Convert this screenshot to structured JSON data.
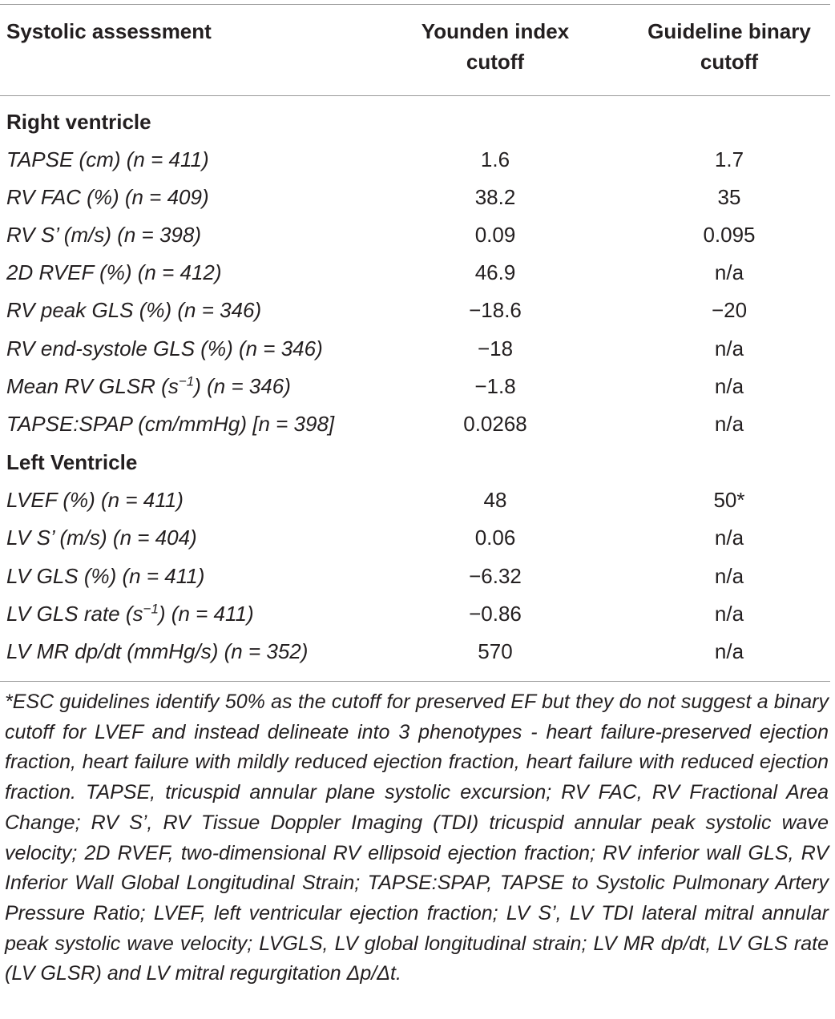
{
  "header": {
    "col1": "Systolic assessment",
    "col2_line1": "Younden index",
    "col2_line2": "cutoff",
    "col3_line1": "Guideline binary",
    "col3_line2": "cutoff"
  },
  "right_ventricle": {
    "title": "Right ventricle",
    "rows": [
      {
        "label": "TAPSE (cm) (n = 411)",
        "younden": "1.6",
        "guideline": "1.7"
      },
      {
        "label": "RV FAC (%) (n = 409)",
        "younden": "38.2",
        "guideline": "35"
      },
      {
        "label": "RV S’ (m/s) (n = 398)",
        "younden": "0.09",
        "guideline": "0.095"
      },
      {
        "label": "2D RVEF (%) (n = 412)",
        "younden": "46.9",
        "guideline": "n/a"
      },
      {
        "label": "RV peak GLS (%) (n = 346)",
        "younden": "−18.6",
        "guideline": "−20"
      },
      {
        "label": "RV end-systole GLS (%) (n = 346)",
        "younden": "−18",
        "guideline": "n/a"
      },
      {
        "label_pre": "Mean RV GLSR (s",
        "label_sup": "−1",
        "label_post": ") (n = 346)",
        "younden": "−1.8",
        "guideline": "n/a"
      },
      {
        "label": "TAPSE:SPAP (cm/mmHg) [n = 398]",
        "younden": "0.0268",
        "guideline": "n/a"
      }
    ]
  },
  "left_ventricle": {
    "title": "Left Ventricle",
    "rows": [
      {
        "label": "LVEF (%) (n = 411)",
        "younden": "48",
        "guideline": "50*"
      },
      {
        "label": "LV S’ (m/s) (n = 404)",
        "younden": "0.06",
        "guideline": "n/a"
      },
      {
        "label": "LV GLS (%) (n = 411)",
        "younden": "−6.32",
        "guideline": "n/a"
      },
      {
        "label_pre": "LV GLS rate (s",
        "label_sup": "−1",
        "label_post": ") (n = 411)",
        "younden": "−0.86",
        "guideline": "n/a"
      },
      {
        "label": "LV MR dp/dt (mmHg/s) (n = 352)",
        "younden": "570",
        "guideline": "n/a"
      }
    ]
  },
  "footnote": "*ESC guidelines identify 50% as the cutoff for preserved EF but they do not suggest a binary cutoff for LVEF and instead delineate into 3 phenotypes - heart failure-preserved ejection fraction, heart failure with mildly reduced ejection fraction, heart failure with reduced ejection fraction. TAPSE, tricuspid annular plane systolic excursion; RV FAC, RV Fractional Area Change; RV S’, RV Tissue Doppler Imaging (TDI) tricuspid annular peak systolic wave velocity; 2D RVEF, two-dimensional RV ellipsoid ejection fraction; RV inferior wall GLS, RV Inferior Wall Global Longitudinal Strain; TAPSE:SPAP, TAPSE to Systolic Pulmonary Artery Pressure Ratio; LVEF, left ventricular ejection fraction; LV S’, LV TDI lateral mitral annular peak systolic wave velocity; LVGLS, LV global longitudinal strain; LV MR dp/dt, LV GLS rate (LV GLSR) and LV mitral regurgitation Δp/Δt."
}
